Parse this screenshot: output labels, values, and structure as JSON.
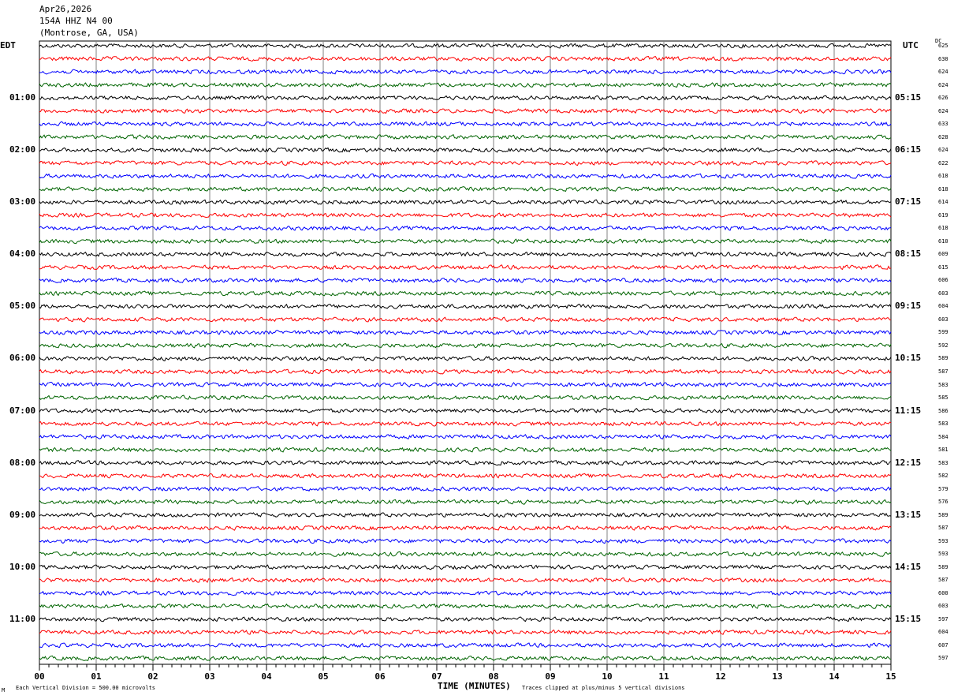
{
  "header": {
    "date": "Apr26,2026",
    "station": "154A HHZ N4 00",
    "location": "(Montrose, GA, USA)"
  },
  "left_timezone": "EDT",
  "right_timezone": "UTC",
  "dc_label": "DC",
  "footer": {
    "scale_note": "Each Vertical Division =  500.00 microvolts",
    "clip_note": "Traces clipped at plus/minus 5 vertical divisions",
    "corner_mark": "M"
  },
  "chart_data": {
    "type": "line",
    "title": "",
    "xlabel": "TIME (MINUTES)",
    "xlim": [
      0,
      15
    ],
    "x_ticks": [
      "00",
      "01",
      "02",
      "03",
      "04",
      "05",
      "06",
      "07",
      "08",
      "09",
      "10",
      "11",
      "12",
      "13",
      "14",
      "15"
    ],
    "grid": true,
    "trace_colors": [
      "#000000",
      "#ff0000",
      "#0000ff",
      "#006400"
    ],
    "left_hour_labels": [
      {
        "trace": 4,
        "label": "01:00"
      },
      {
        "trace": 8,
        "label": "02:00"
      },
      {
        "trace": 12,
        "label": "03:00"
      },
      {
        "trace": 16,
        "label": "04:00"
      },
      {
        "trace": 20,
        "label": "05:00"
      },
      {
        "trace": 24,
        "label": "06:00"
      },
      {
        "trace": 28,
        "label": "07:00"
      },
      {
        "trace": 32,
        "label": "08:00"
      },
      {
        "trace": 36,
        "label": "09:00"
      },
      {
        "trace": 40,
        "label": "10:00"
      },
      {
        "trace": 44,
        "label": "11:00"
      }
    ],
    "right_hour_labels": [
      {
        "trace": 4,
        "label": "05:15"
      },
      {
        "trace": 8,
        "label": "06:15"
      },
      {
        "trace": 12,
        "label": "07:15"
      },
      {
        "trace": 16,
        "label": "08:15"
      },
      {
        "trace": 20,
        "label": "09:15"
      },
      {
        "trace": 24,
        "label": "10:15"
      },
      {
        "trace": 28,
        "label": "11:15"
      },
      {
        "trace": 32,
        "label": "12:15"
      },
      {
        "trace": 36,
        "label": "13:15"
      },
      {
        "trace": 40,
        "label": "14:15"
      },
      {
        "trace": 44,
        "label": "15:15"
      }
    ],
    "dc_offsets": [
      625,
      630,
      624,
      624,
      626,
      624,
      633,
      628,
      624,
      622,
      618,
      618,
      614,
      619,
      618,
      610,
      609,
      615,
      606,
      603,
      604,
      603,
      599,
      592,
      589,
      587,
      583,
      585,
      586,
      583,
      584,
      581,
      583,
      582,
      579,
      576,
      589,
      587,
      593,
      593,
      589,
      587,
      600,
      603,
      597,
      604,
      607,
      597
    ]
  }
}
